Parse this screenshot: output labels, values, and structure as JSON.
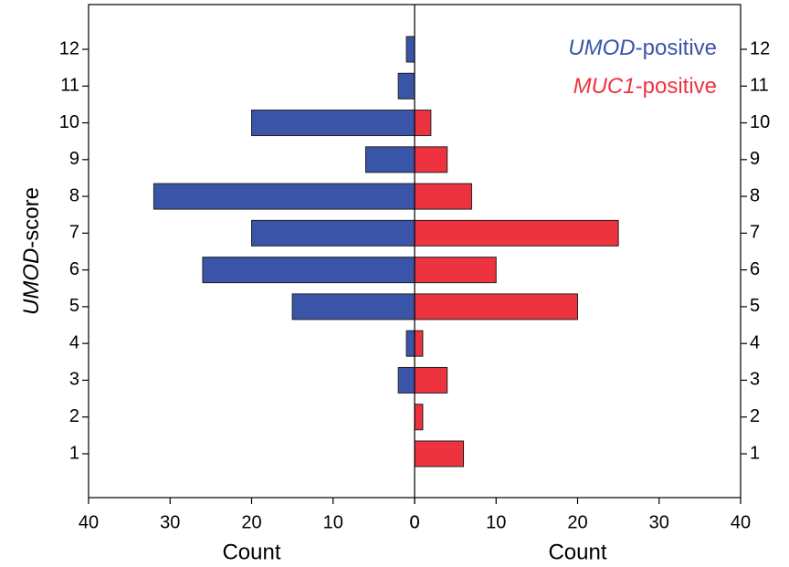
{
  "chart_data": {
    "type": "pyramid",
    "y_label": "UMOD-score",
    "x_label": "Count",
    "categories": [
      "1",
      "2",
      "3",
      "4",
      "5",
      "6",
      "7",
      "8",
      "9",
      "10",
      "11",
      "12"
    ],
    "series": [
      {
        "name": "UMOD-positive",
        "color": "#3a55a8",
        "side": "left",
        "values": [
          0,
          0,
          2,
          1,
          15,
          26,
          20,
          32,
          6,
          20,
          2,
          1
        ]
      },
      {
        "name": "MUC1-positive",
        "color": "#ee3340",
        "side": "right",
        "values": [
          6,
          1,
          4,
          1,
          20,
          10,
          25,
          7,
          4,
          2,
          0,
          0
        ]
      }
    ],
    "xlim": [
      0,
      40
    ],
    "xticks": [
      0,
      10,
      20,
      30,
      40
    ],
    "legend": "upper right"
  }
}
